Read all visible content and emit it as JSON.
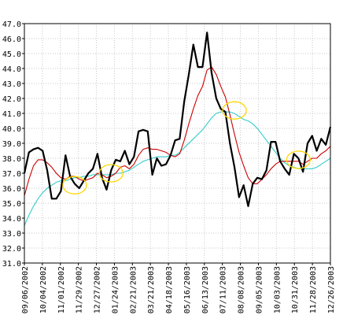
{
  "chart_data": {
    "type": "line",
    "title": "",
    "xlabel": "",
    "ylabel": "",
    "ylim": [
      31.0,
      47.0
    ],
    "grid": true,
    "legend": "none",
    "x_tick_labels": [
      "09/06/2002",
      "10/04/2002",
      "11/01/2002",
      "11/29/2002",
      "12/27/2002",
      "01/24/2003",
      "02/21/2003",
      "03/21/2003",
      "04/18/2003",
      "05/16/2003",
      "06/13/2003",
      "07/11/2003",
      "08/08/2003",
      "09/05/2003",
      "10/03/2003",
      "10/31/2003",
      "11/28/2003",
      "12/26/2003"
    ],
    "y_ticks": [
      "31.0",
      "32.0",
      "33.0",
      "34.0",
      "35.0",
      "36.0",
      "37.0",
      "38.0",
      "39.0",
      "40.0",
      "41.0",
      "42.0",
      "43.0",
      "44.0",
      "45.0",
      "46.0",
      "47.0"
    ],
    "x_start_date": "2002-09-06",
    "x_day_step": 4,
    "series": [
      {
        "color": "#000000",
        "values": [
          37.0,
          38.4,
          38.6,
          38.7,
          38.5,
          37.2,
          35.3,
          35.3,
          35.8,
          38.2,
          36.8,
          36.3,
          36.0,
          36.5,
          37.0,
          37.3,
          38.3,
          36.7,
          35.9,
          37.2,
          37.9,
          37.8,
          38.5,
          37.6,
          38.1,
          39.8,
          39.9,
          39.8,
          36.9,
          38.0,
          37.5,
          37.6,
          38.2,
          39.2,
          39.3,
          41.8,
          43.6,
          45.6,
          44.1,
          44.1,
          46.4,
          43.7,
          42.0,
          41.3,
          41.1,
          39.0,
          37.4,
          35.4,
          36.2,
          34.8,
          36.3,
          36.7,
          36.6,
          37.2,
          39.1,
          39.1,
          37.8,
          37.3,
          36.9,
          38.3,
          38.0,
          37.1,
          39.0,
          39.5,
          38.5,
          39.3,
          38.9,
          40.1
        ]
      },
      {
        "color": "#cc0000",
        "values": [
          35.5,
          36.6,
          37.5,
          37.9,
          37.9,
          37.7,
          37.4,
          37.0,
          36.7,
          36.6,
          36.8,
          36.8,
          36.6,
          36.5,
          36.6,
          36.7,
          37.0,
          36.9,
          36.7,
          36.8,
          37.0,
          37.4,
          37.5,
          37.3,
          37.6,
          38.2,
          38.6,
          38.7,
          38.6,
          38.6,
          38.5,
          38.4,
          38.2,
          38.1,
          38.3,
          39.2,
          40.3,
          41.3,
          42.2,
          42.8,
          43.9,
          44.1,
          43.6,
          42.8,
          42.1,
          40.9,
          39.6,
          38.4,
          37.5,
          36.7,
          36.3,
          36.3,
          36.6,
          36.9,
          37.3,
          37.6,
          37.8,
          37.8,
          37.8,
          37.8,
          37.8,
          37.6,
          37.8,
          38.0,
          38.0,
          38.3,
          38.5,
          38.8
        ]
      },
      {
        "color": "#33cccc",
        "values": [
          33.5,
          34.2,
          34.8,
          35.3,
          35.7,
          36.0,
          36.2,
          36.4,
          36.5,
          36.5,
          36.6,
          36.7,
          36.7,
          36.8,
          36.8,
          36.9,
          36.9,
          36.9,
          36.9,
          36.9,
          37.0,
          37.0,
          37.1,
          37.2,
          37.4,
          37.6,
          37.8,
          37.9,
          38.0,
          38.1,
          38.1,
          38.1,
          38.2,
          38.2,
          38.4,
          38.7,
          39.0,
          39.3,
          39.6,
          39.9,
          40.3,
          40.7,
          41.0,
          41.1,
          41.1,
          41.1,
          41.0,
          40.8,
          40.6,
          40.5,
          40.3,
          40.0,
          39.6,
          39.2,
          38.8,
          38.4,
          38.0,
          37.7,
          37.5,
          37.4,
          37.3,
          37.3,
          37.3,
          37.3,
          37.4,
          37.6,
          37.8,
          38.0
        ]
      }
    ],
    "annotations": [
      {
        "type": "ellipse",
        "color": "#ffd700",
        "x_index": 11,
        "y": 36.2
      },
      {
        "type": "ellipse",
        "color": "#ffd700",
        "x_index": 19,
        "y": 37.0
      },
      {
        "type": "ellipse",
        "color": "#ffd700",
        "x_index": 46,
        "y": 41.2
      },
      {
        "type": "ellipse",
        "color": "#ffd700",
        "x_index": 60,
        "y": 37.9
      }
    ]
  }
}
